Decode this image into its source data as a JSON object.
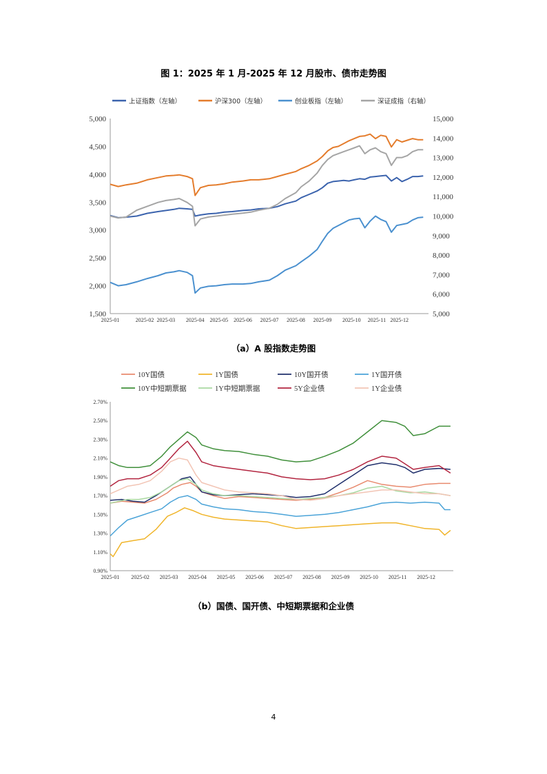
{
  "page": {
    "figure_title": "图 1：2025 年 1 月-2025 年 12 月股市、债市走势图",
    "caption_a": "（a）A 股指数走势图",
    "caption_b": "（b）国债、国开债、中短期票据和企业债",
    "page_number": "4"
  },
  "chart_data": [
    {
      "type": "line",
      "x_tick_labels": [
        "2025-01",
        "2025-02",
        "2025-03",
        "2025-04",
        "2025-05",
        "2025-06",
        "2025-07",
        "2025-08",
        "2025-09",
        "2025-10",
        "2025-11",
        "2025-12"
      ],
      "y_left_ticks": [
        "5,000",
        "4,500",
        "4,000",
        "3,500",
        "3,000",
        "2,500",
        "2,000",
        "1,500"
      ],
      "y_right_ticks": [
        "15,000",
        "14,000",
        "13,000",
        "12,000",
        "11,000",
        "10,000",
        "9,000",
        "8,000",
        "7,000",
        "6,000",
        "5,000"
      ],
      "ylim_left": [
        1500,
        5000
      ],
      "ylim_right": [
        5000,
        15000
      ],
      "grid": false,
      "legend_position": "top",
      "x_domain": [
        0,
        12
      ],
      "series": [
        {
          "name": "上证指数（左轴）",
          "color": "#3b63ad",
          "axis": "left",
          "x": [
            0,
            0.3,
            0.6,
            1,
            1.4,
            1.8,
            2.1,
            2.4,
            2.6,
            2.9,
            3.1,
            3.2,
            3.4,
            3.7,
            4,
            4.3,
            4.6,
            5,
            5.3,
            5.6,
            6,
            6.3,
            6.6,
            7,
            7.2,
            7.5,
            7.8,
            8,
            8.2,
            8.4,
            8.6,
            8.8,
            9,
            9.2,
            9.4,
            9.6,
            9.8,
            10,
            10.2,
            10.4,
            10.6,
            10.8,
            11,
            11.2,
            11.4,
            11.6,
            11.8
          ],
          "values": [
            3260,
            3220,
            3230,
            3250,
            3300,
            3330,
            3350,
            3370,
            3390,
            3380,
            3370,
            3250,
            3270,
            3290,
            3300,
            3320,
            3330,
            3350,
            3360,
            3380,
            3390,
            3420,
            3470,
            3520,
            3580,
            3640,
            3700,
            3760,
            3840,
            3870,
            3880,
            3890,
            3880,
            3900,
            3920,
            3910,
            3950,
            3960,
            3970,
            3980,
            3880,
            3940,
            3870,
            3910,
            3960,
            3960,
            3970
          ]
        },
        {
          "name": "沪深300（左轴）",
          "color": "#e47c2c",
          "axis": "left",
          "x": [
            0,
            0.3,
            0.6,
            1,
            1.4,
            1.8,
            2.1,
            2.4,
            2.6,
            2.9,
            3.1,
            3.2,
            3.4,
            3.7,
            4,
            4.3,
            4.6,
            5,
            5.3,
            5.6,
            6,
            6.3,
            6.6,
            7,
            7.2,
            7.5,
            7.8,
            8,
            8.2,
            8.4,
            8.6,
            8.8,
            9,
            9.2,
            9.4,
            9.6,
            9.8,
            10,
            10.2,
            10.4,
            10.6,
            10.8,
            11,
            11.2,
            11.4,
            11.6,
            11.8
          ],
          "values": [
            3820,
            3780,
            3810,
            3840,
            3900,
            3940,
            3970,
            3980,
            3990,
            3960,
            3920,
            3620,
            3760,
            3800,
            3810,
            3830,
            3860,
            3880,
            3900,
            3900,
            3920,
            3960,
            4000,
            4050,
            4100,
            4160,
            4240,
            4320,
            4420,
            4480,
            4500,
            4550,
            4600,
            4640,
            4680,
            4690,
            4720,
            4640,
            4700,
            4680,
            4490,
            4620,
            4580,
            4610,
            4640,
            4620,
            4620
          ]
        },
        {
          "name": "创业板指（左轴）",
          "color": "#4a90cf",
          "axis": "left",
          "x": [
            0,
            0.3,
            0.6,
            1,
            1.4,
            1.8,
            2.1,
            2.4,
            2.6,
            2.9,
            3.1,
            3.2,
            3.4,
            3.7,
            4,
            4.3,
            4.6,
            5,
            5.3,
            5.6,
            6,
            6.3,
            6.6,
            7,
            7.2,
            7.5,
            7.8,
            8,
            8.2,
            8.4,
            8.6,
            8.8,
            9,
            9.2,
            9.4,
            9.6,
            9.8,
            10,
            10.2,
            10.4,
            10.6,
            10.8,
            11,
            11.2,
            11.4,
            11.6,
            11.8
          ],
          "values": [
            2060,
            2000,
            2020,
            2070,
            2130,
            2180,
            2230,
            2250,
            2270,
            2240,
            2180,
            1870,
            1960,
            1990,
            2000,
            2020,
            2030,
            2030,
            2040,
            2070,
            2100,
            2180,
            2280,
            2360,
            2430,
            2530,
            2650,
            2800,
            2940,
            3030,
            3080,
            3130,
            3180,
            3200,
            3210,
            3040,
            3160,
            3250,
            3190,
            3150,
            2960,
            3080,
            3100,
            3120,
            3180,
            3220,
            3230
          ]
        },
        {
          "name": "深证成指（右轴）",
          "color": "#a5a5a5",
          "axis": "right",
          "x": [
            0,
            0.3,
            0.6,
            1,
            1.4,
            1.8,
            2.1,
            2.4,
            2.6,
            2.9,
            3.1,
            3.2,
            3.4,
            3.7,
            4,
            4.3,
            4.6,
            5,
            5.3,
            5.6,
            6,
            6.3,
            6.6,
            7,
            7.2,
            7.5,
            7.8,
            8,
            8.2,
            8.4,
            8.6,
            8.8,
            9,
            9.2,
            9.4,
            9.6,
            9.8,
            10,
            10.2,
            10.4,
            10.6,
            10.8,
            11,
            11.2,
            11.4,
            11.6,
            11.8
          ],
          "values": [
            10000,
            9900,
            9950,
            10300,
            10500,
            10700,
            10800,
            10850,
            10900,
            10700,
            10500,
            9500,
            9850,
            9950,
            10000,
            10050,
            10100,
            10150,
            10200,
            10300,
            10400,
            10600,
            10900,
            11200,
            11500,
            11800,
            12200,
            12600,
            12900,
            13100,
            13200,
            13300,
            13400,
            13500,
            13600,
            13200,
            13400,
            13500,
            13300,
            13200,
            12600,
            13000,
            13000,
            13100,
            13300,
            13400,
            13400
          ]
        }
      ]
    },
    {
      "type": "line",
      "x_tick_labels": [
        "2025-01",
        "2025-02",
        "2025-03",
        "2025-04",
        "2025-05",
        "2025-06",
        "2025-07",
        "2025-08",
        "2025-09",
        "2025-10",
        "2025-11",
        "2025-12"
      ],
      "y_ticks": [
        "2.70%",
        "2.50%",
        "2.30%",
        "2.10%",
        "1.90%",
        "1.70%",
        "1.50%",
        "1.30%",
        "1.10%",
        "0.90%"
      ],
      "ylim": [
        0.9,
        2.7
      ],
      "grid": false,
      "legend_position": "top",
      "x_domain": [
        0,
        12
      ],
      "series": [
        {
          "name": "10Y国债",
          "color": "#e88a6e",
          "x": [
            0,
            0.4,
            0.8,
            1.2,
            1.6,
            2,
            2.2,
            2.5,
            2.8,
            3,
            3.2,
            3.6,
            4,
            4.5,
            5,
            5.5,
            6,
            6.5,
            7,
            7.5,
            8,
            8.5,
            9,
            9.5,
            10,
            10.5,
            11,
            11.5,
            11.9
          ],
          "values": [
            1.62,
            1.64,
            1.63,
            1.62,
            1.66,
            1.73,
            1.78,
            1.82,
            1.84,
            1.8,
            1.74,
            1.7,
            1.67,
            1.69,
            1.68,
            1.67,
            1.66,
            1.65,
            1.66,
            1.68,
            1.73,
            1.79,
            1.86,
            1.82,
            1.8,
            1.79,
            1.82,
            1.83,
            1.83
          ]
        },
        {
          "name": "1Y国债",
          "color": "#f0b429",
          "x": [
            0,
            0.1,
            0.4,
            0.8,
            1.2,
            1.6,
            2,
            2.3,
            2.6,
            2.9,
            3.2,
            3.6,
            4,
            4.5,
            5,
            5.5,
            6,
            6.5,
            7,
            7.5,
            8,
            8.5,
            9,
            9.5,
            10,
            10.5,
            11,
            11.5,
            11.7,
            11.9
          ],
          "values": [
            1.08,
            1.05,
            1.2,
            1.22,
            1.24,
            1.34,
            1.48,
            1.52,
            1.57,
            1.54,
            1.5,
            1.47,
            1.45,
            1.44,
            1.43,
            1.42,
            1.38,
            1.35,
            1.36,
            1.37,
            1.38,
            1.39,
            1.4,
            1.41,
            1.41,
            1.38,
            1.35,
            1.34,
            1.28,
            1.33
          ]
        },
        {
          "name": "10Y国开债",
          "color": "#1f2f6b",
          "x": [
            0,
            0.4,
            0.8,
            1.2,
            1.6,
            2,
            2.2,
            2.5,
            2.8,
            3,
            3.2,
            3.6,
            4,
            4.5,
            5,
            5.5,
            6,
            6.5,
            7,
            7.5,
            8,
            8.5,
            9,
            9.5,
            10,
            10.3,
            10.6,
            11,
            11.5,
            11.9
          ],
          "values": [
            1.65,
            1.66,
            1.64,
            1.63,
            1.7,
            1.78,
            1.82,
            1.88,
            1.9,
            1.82,
            1.74,
            1.71,
            1.7,
            1.71,
            1.72,
            1.71,
            1.7,
            1.68,
            1.69,
            1.72,
            1.82,
            1.92,
            2.02,
            2.05,
            2.03,
            2.0,
            1.94,
            1.98,
            1.99,
            1.98
          ]
        },
        {
          "name": "1Y国开债",
          "color": "#4aa3d8",
          "x": [
            0,
            0.3,
            0.6,
            1,
            1.4,
            1.8,
            2.1,
            2.4,
            2.7,
            3,
            3.2,
            3.6,
            4,
            4.5,
            5,
            5.5,
            6,
            6.5,
            7,
            7.5,
            8,
            8.5,
            9,
            9.5,
            10,
            10.5,
            11,
            11.5,
            11.7,
            11.9
          ],
          "values": [
            1.27,
            1.36,
            1.44,
            1.48,
            1.52,
            1.56,
            1.63,
            1.68,
            1.7,
            1.66,
            1.61,
            1.58,
            1.56,
            1.55,
            1.53,
            1.52,
            1.5,
            1.48,
            1.49,
            1.5,
            1.52,
            1.55,
            1.58,
            1.62,
            1.63,
            1.62,
            1.63,
            1.62,
            1.55,
            1.55
          ]
        },
        {
          "name": "10Y中短期票据",
          "color": "#3f8f3a",
          "x": [
            0,
            0.3,
            0.6,
            1,
            1.4,
            1.8,
            2.1,
            2.4,
            2.7,
            3,
            3.2,
            3.6,
            4,
            4.5,
            5,
            5.5,
            6,
            6.5,
            7,
            7.5,
            8,
            8.5,
            9,
            9.5,
            10,
            10.3,
            10.6,
            11,
            11.5,
            11.9
          ],
          "values": [
            2.06,
            2.02,
            2.0,
            2.0,
            2.02,
            2.12,
            2.22,
            2.3,
            2.38,
            2.32,
            2.24,
            2.2,
            2.18,
            2.17,
            2.14,
            2.12,
            2.08,
            2.06,
            2.07,
            2.12,
            2.18,
            2.26,
            2.38,
            2.5,
            2.48,
            2.44,
            2.34,
            2.36,
            2.44,
            2.44
          ]
        },
        {
          "name": "1Y中短期票据",
          "color": "#a8d8a0",
          "x": [
            0,
            0.3,
            0.6,
            1,
            1.4,
            1.8,
            2.1,
            2.4,
            2.7,
            3,
            3.2,
            3.6,
            4,
            4.5,
            5,
            5.5,
            6,
            6.5,
            7,
            7.5,
            8,
            8.5,
            9,
            9.5,
            10,
            10.5,
            11,
            11.5,
            11.9
          ],
          "values": [
            1.62,
            1.64,
            1.66,
            1.66,
            1.68,
            1.74,
            1.8,
            1.86,
            1.88,
            1.82,
            1.76,
            1.72,
            1.7,
            1.7,
            1.69,
            1.68,
            1.67,
            1.66,
            1.67,
            1.68,
            1.7,
            1.73,
            1.78,
            1.8,
            1.75,
            1.73,
            1.74,
            1.72,
            1.7
          ]
        },
        {
          "name": "5Y企业债",
          "color": "#b2243f",
          "x": [
            0,
            0.3,
            0.6,
            1,
            1.4,
            1.8,
            2.1,
            2.4,
            2.7,
            3,
            3.2,
            3.6,
            4,
            4.5,
            5,
            5.5,
            6,
            6.5,
            7,
            7.5,
            8,
            8.5,
            9,
            9.5,
            10,
            10.3,
            10.6,
            11,
            11.5,
            11.9
          ],
          "values": [
            1.8,
            1.86,
            1.88,
            1.88,
            1.92,
            2.0,
            2.1,
            2.2,
            2.28,
            2.16,
            2.06,
            2.02,
            2.0,
            1.98,
            1.96,
            1.94,
            1.9,
            1.88,
            1.87,
            1.88,
            1.92,
            1.98,
            2.06,
            2.12,
            2.1,
            2.04,
            1.98,
            2.0,
            2.02,
            1.94
          ]
        },
        {
          "name": "1Y企业债",
          "color": "#f2c4b4",
          "x": [
            0,
            0.3,
            0.6,
            1,
            1.4,
            1.8,
            2.1,
            2.4,
            2.7,
            3,
            3.2,
            3.6,
            4,
            4.5,
            5,
            5.5,
            6,
            6.5,
            7,
            7.5,
            8,
            8.5,
            9,
            9.5,
            10,
            10.5,
            11,
            11.5,
            11.9
          ],
          "values": [
            1.72,
            1.76,
            1.8,
            1.82,
            1.86,
            1.96,
            2.06,
            2.1,
            2.08,
            1.92,
            1.84,
            1.8,
            1.76,
            1.74,
            1.73,
            1.72,
            1.7,
            1.66,
            1.65,
            1.67,
            1.7,
            1.72,
            1.74,
            1.76,
            1.76,
            1.74,
            1.72,
            1.72,
            1.7
          ]
        }
      ]
    }
  ]
}
